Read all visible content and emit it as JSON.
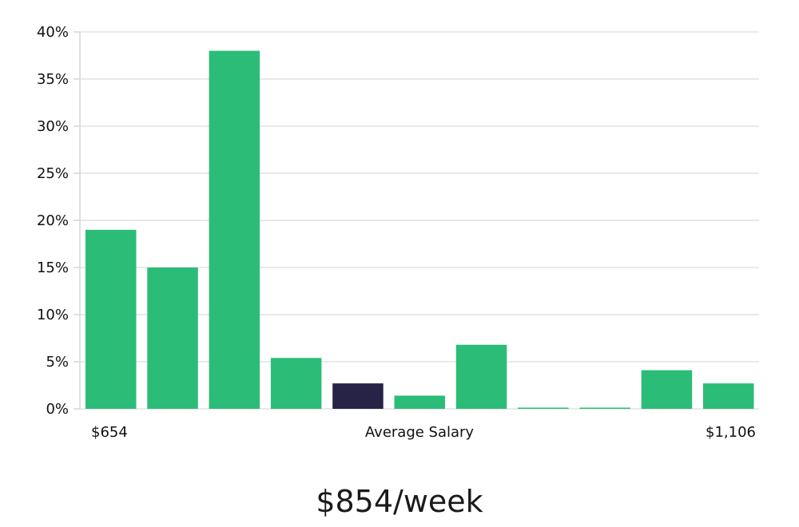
{
  "chart_data": {
    "type": "bar",
    "categories": [
      "1",
      "2",
      "3",
      "4",
      "5",
      "6",
      "7",
      "8",
      "9",
      "10",
      "11"
    ],
    "values": [
      19,
      15,
      38,
      5.4,
      2.7,
      1.4,
      6.8,
      0.1,
      0.1,
      4.1,
      2.7
    ],
    "highlight_index": 4,
    "ylim": [
      0,
      40
    ],
    "yticks": [
      0,
      5,
      10,
      15,
      20,
      25,
      30,
      35,
      40
    ],
    "ytick_labels": [
      "0%",
      "5%",
      "10%",
      "15%",
      "20%",
      "25%",
      "30%",
      "35%",
      "40%"
    ],
    "x_labels": {
      "left": "$654",
      "center": "Average Salary",
      "right": "$1,106"
    },
    "grid": true,
    "colors": {
      "bar": "#2bbd77",
      "highlight": "#262346"
    }
  },
  "summary": "$854/week"
}
